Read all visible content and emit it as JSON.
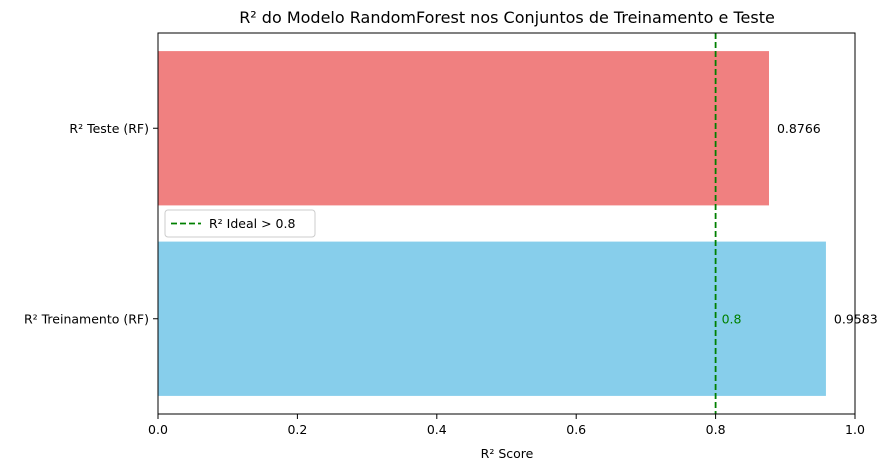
{
  "chart_data": {
    "type": "bar",
    "orientation": "horizontal",
    "title": "R² do Modelo RandomForest nos Conjuntos de Treinamento e Teste",
    "xlabel": "R² Score",
    "ylabel": "",
    "xlim": [
      0,
      1.0
    ],
    "x_ticks": [
      "0.0",
      "0.2",
      "0.4",
      "0.6",
      "0.8",
      "1.0"
    ],
    "grid": false,
    "categories": [
      "R² Treinamento (RF)",
      "R² Teste (RF)"
    ],
    "values": [
      0.9583,
      0.8766
    ],
    "value_labels": [
      "0.9583",
      "0.8766"
    ],
    "bar_colors": [
      "#87ceeb",
      "#f08080"
    ],
    "reference_line": {
      "value": 0.8,
      "label": "0.8",
      "legend_label": "R² Ideal > 0.8",
      "color": "#008000",
      "style": "dashed"
    },
    "legend": {
      "placement": "center-left",
      "entries": [
        "R² Ideal > 0.8"
      ]
    }
  }
}
